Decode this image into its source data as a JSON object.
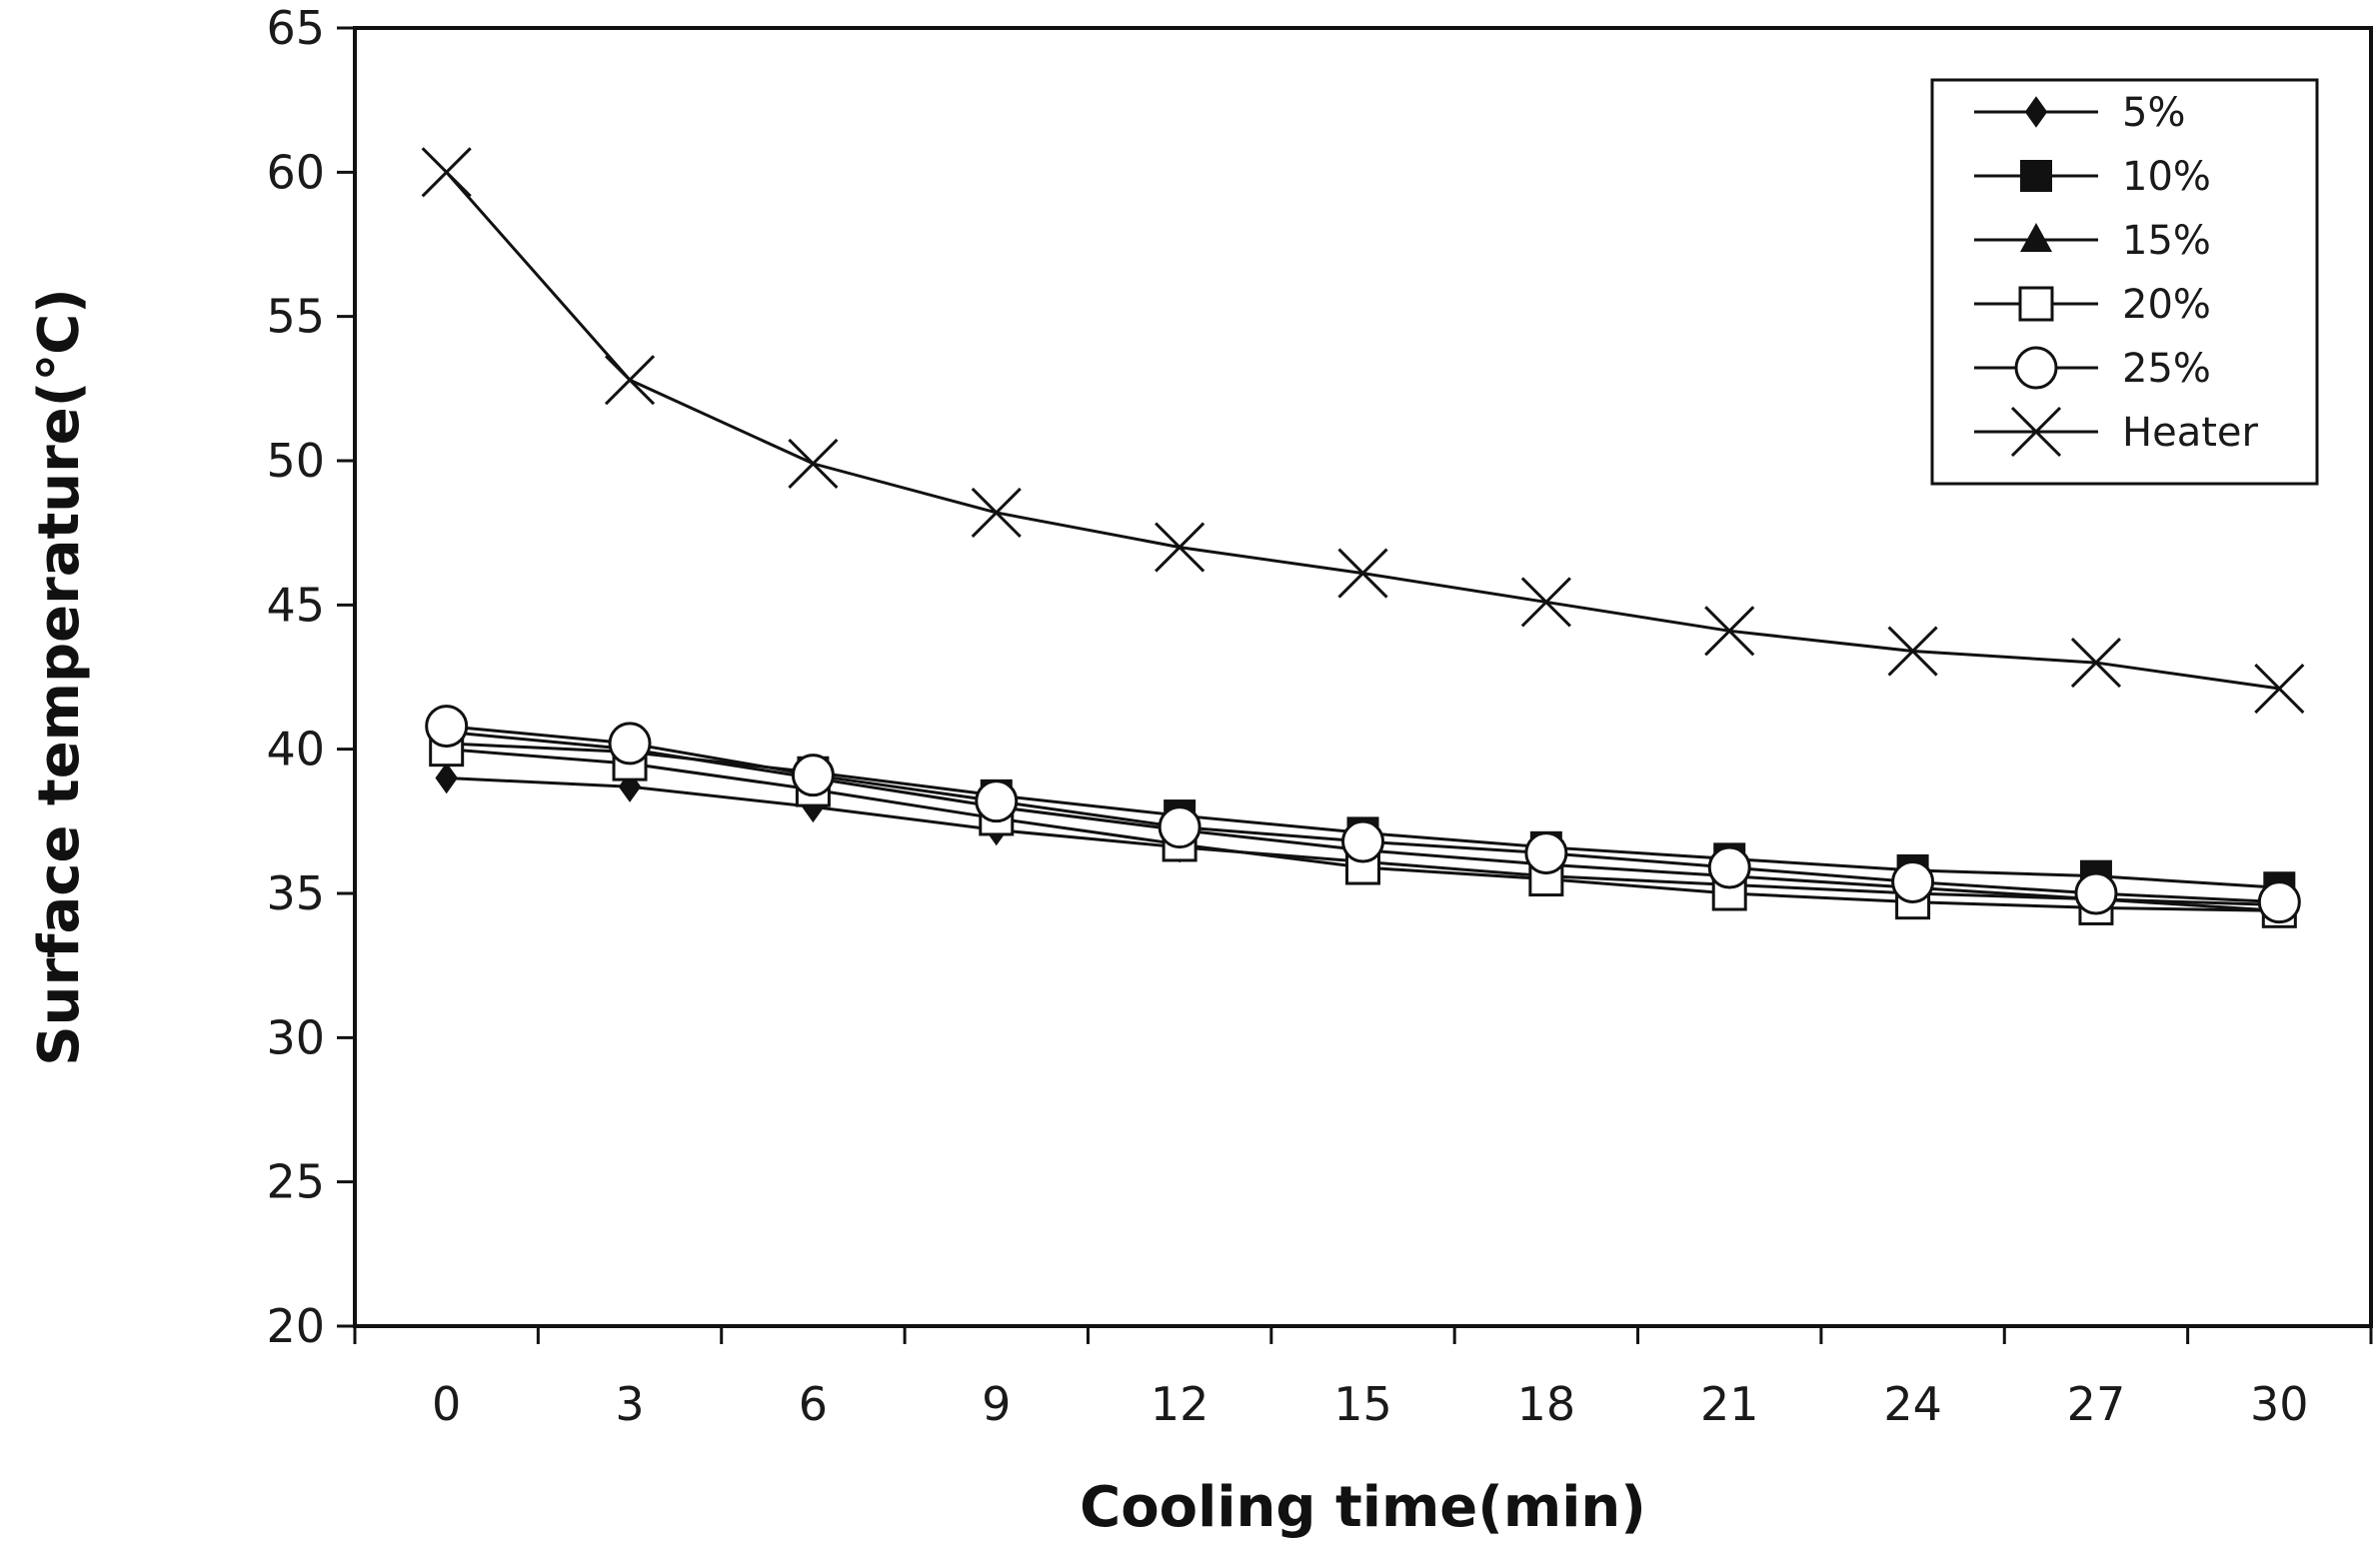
{
  "chart_data": {
    "type": "line",
    "title": "",
    "xlabel": "Cooling time(min)",
    "ylabel": "Surface temperature(℃)",
    "x": [
      0,
      3,
      6,
      9,
      12,
      15,
      18,
      21,
      24,
      27,
      30
    ],
    "x_tick_labels": [
      "0",
      "3",
      "6",
      "9",
      "12",
      "15",
      "18",
      "21",
      "24",
      "27",
      "30"
    ],
    "ylim": [
      20,
      65
    ],
    "y_ticks": [
      20,
      25,
      30,
      35,
      40,
      45,
      50,
      55,
      60,
      65
    ],
    "grid": false,
    "legend_position": "top-right",
    "series": [
      {
        "name": "5%",
        "marker": "diamond-filled",
        "values": [
          39.0,
          38.7,
          38.0,
          37.2,
          36.6,
          36.1,
          35.6,
          35.3,
          35.0,
          34.8,
          34.6
        ]
      },
      {
        "name": "10%",
        "marker": "square-filled",
        "values": [
          40.2,
          39.9,
          39.2,
          38.4,
          37.7,
          37.1,
          36.6,
          36.2,
          35.8,
          35.6,
          35.2
        ]
      },
      {
        "name": "15%",
        "marker": "triangle-filled",
        "values": [
          40.6,
          40.0,
          39.0,
          38.0,
          37.2,
          36.5,
          36.0,
          35.6,
          35.2,
          34.8,
          34.4
        ]
      },
      {
        "name": "20%",
        "marker": "square-open",
        "values": [
          40.0,
          39.5,
          38.6,
          37.6,
          36.7,
          35.9,
          35.5,
          35.0,
          34.7,
          34.5,
          34.4
        ]
      },
      {
        "name": "25%",
        "marker": "circle-open",
        "values": [
          40.8,
          40.2,
          39.1,
          38.2,
          37.3,
          36.8,
          36.4,
          35.9,
          35.4,
          35.0,
          34.7
        ]
      },
      {
        "name": "Heater",
        "marker": "x",
        "values": [
          60.0,
          52.8,
          49.9,
          48.2,
          47.0,
          46.1,
          45.1,
          44.1,
          43.4,
          43.0,
          42.1
        ]
      }
    ],
    "colors": {
      "line": "#111111",
      "open_fill": "#ffffff",
      "axis": "#111111"
    }
  }
}
